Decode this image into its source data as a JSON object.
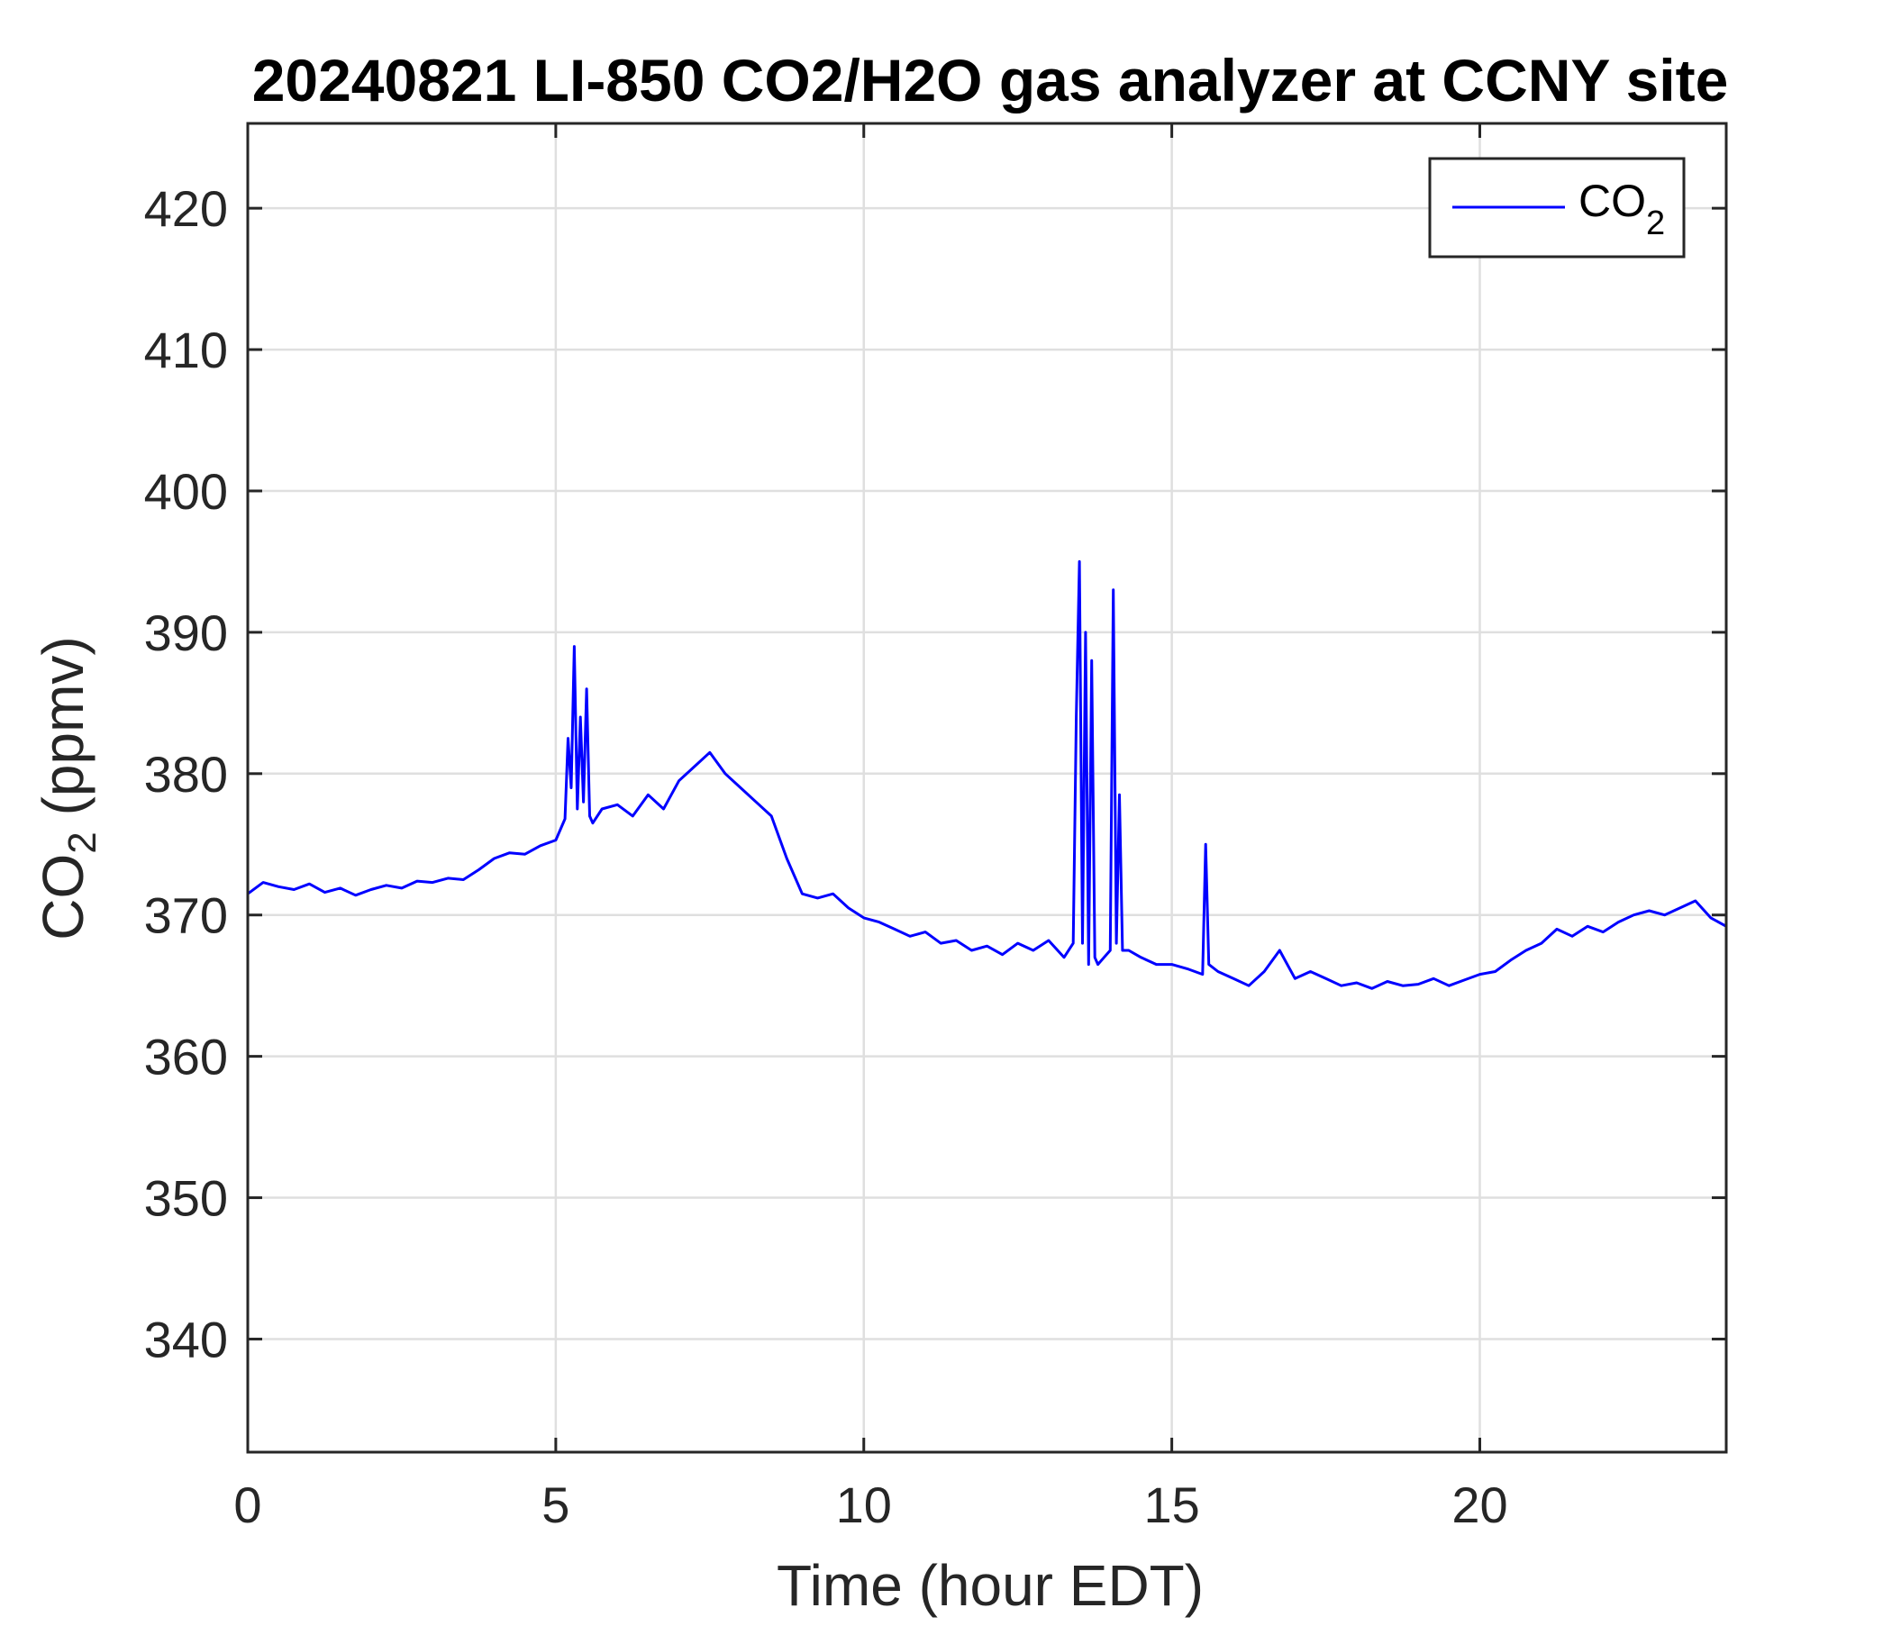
{
  "chart_data": {
    "type": "line",
    "title": "20240821 LI-850 CO2/H2O gas analyzer at CCNY site",
    "xlabel": "Time (hour EDT)",
    "ylabel": {
      "base": "CO",
      "sub": "2",
      "rest": " (ppmv)"
    },
    "xlim": [
      0,
      24
    ],
    "ylim": [
      332,
      426
    ],
    "xticks": [
      0,
      5,
      10,
      15,
      20
    ],
    "xtick_labels": [
      "0",
      "5",
      "10",
      "15",
      "20"
    ],
    "yticks": [
      340,
      350,
      360,
      370,
      380,
      390,
      400,
      410,
      420
    ],
    "ytick_labels": [
      "340",
      "350",
      "360",
      "370",
      "380",
      "390",
      "400",
      "410",
      "420"
    ],
    "grid": true,
    "legend": {
      "placement": "top-right",
      "entries": [
        {
          "base": "CO",
          "sub": "2",
          "color": "#0000ff"
        }
      ]
    },
    "series": [
      {
        "name": "CO2",
        "color": "#0000ff",
        "x": [
          0,
          0.25,
          0.5,
          0.75,
          1.0,
          1.25,
          1.5,
          1.75,
          2.0,
          2.25,
          2.5,
          2.75,
          3.0,
          3.25,
          3.5,
          3.75,
          4.0,
          4.25,
          4.5,
          4.75,
          5.0,
          5.15,
          5.2,
          5.25,
          5.3,
          5.35,
          5.4,
          5.45,
          5.5,
          5.55,
          5.6,
          5.75,
          6.0,
          6.25,
          6.5,
          6.75,
          7.0,
          7.25,
          7.5,
          7.75,
          8.0,
          8.25,
          8.5,
          8.75,
          9.0,
          9.25,
          9.5,
          9.75,
          10.0,
          10.25,
          10.5,
          10.75,
          11.0,
          11.25,
          11.5,
          11.75,
          12.0,
          12.25,
          12.5,
          12.75,
          13.0,
          13.25,
          13.4,
          13.45,
          13.5,
          13.55,
          13.6,
          13.65,
          13.7,
          13.75,
          13.8,
          13.9,
          14.0,
          14.05,
          14.1,
          14.15,
          14.2,
          14.3,
          14.5,
          14.75,
          15.0,
          15.25,
          15.5,
          15.55,
          15.6,
          15.75,
          16.0,
          16.25,
          16.5,
          16.75,
          17.0,
          17.25,
          17.5,
          17.75,
          18.0,
          18.25,
          18.5,
          18.75,
          19.0,
          19.25,
          19.5,
          19.75,
          20.0,
          20.25,
          20.5,
          20.75,
          21.0,
          21.25,
          21.5,
          21.75,
          22.0,
          22.25,
          22.5,
          22.75,
          23.0,
          23.25,
          23.5,
          23.75,
          24.0
        ],
        "y": [
          371.5,
          372.3,
          372.0,
          371.8,
          372.2,
          371.6,
          371.9,
          371.4,
          371.8,
          372.1,
          371.9,
          372.4,
          372.3,
          372.6,
          372.5,
          373.2,
          374.0,
          374.4,
          374.3,
          374.9,
          375.3,
          376.8,
          382.5,
          379.0,
          389.0,
          377.5,
          384.0,
          378.0,
          386.0,
          377.0,
          376.5,
          377.5,
          377.8,
          377.0,
          378.5,
          377.5,
          379.5,
          380.5,
          381.5,
          380.0,
          379.0,
          378.0,
          377.0,
          374.0,
          371.5,
          371.2,
          371.5,
          370.5,
          369.8,
          369.5,
          369.0,
          368.5,
          368.8,
          368.0,
          368.2,
          367.5,
          367.8,
          367.2,
          368.0,
          367.5,
          368.2,
          367.0,
          368.0,
          384.0,
          395.0,
          368.0,
          390.0,
          366.5,
          388.0,
          367.0,
          366.5,
          367.0,
          367.5,
          393.0,
          368.0,
          378.5,
          367.5,
          367.5,
          367.0,
          366.5,
          366.5,
          366.2,
          365.8,
          375.0,
          366.5,
          366.0,
          365.5,
          365.0,
          366.0,
          367.5,
          365.5,
          366.0,
          365.5,
          365.0,
          365.2,
          364.8,
          365.3,
          365.0,
          365.1,
          365.5,
          365.0,
          365.4,
          365.8,
          366.0,
          366.8,
          367.5,
          368.0,
          369.0,
          368.5,
          369.2,
          368.8,
          369.5,
          370.0,
          370.3,
          370.0,
          370.5,
          371.0,
          369.8,
          369.2
        ]
      }
    ]
  }
}
